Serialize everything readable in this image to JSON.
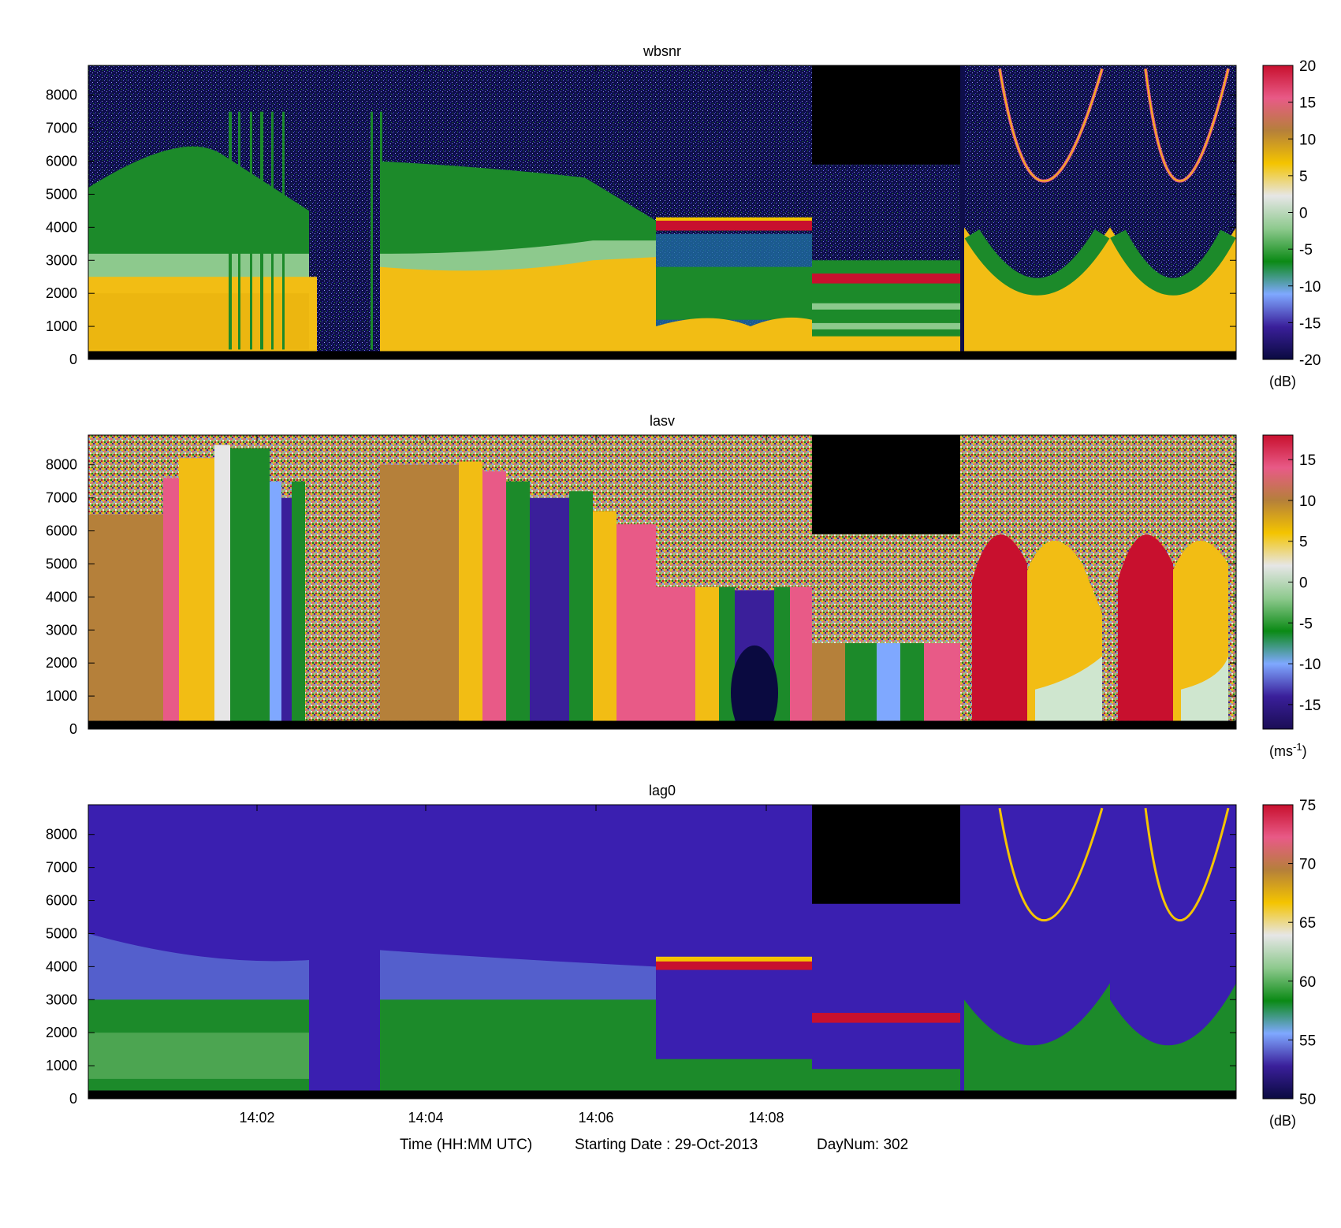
{
  "figure": {
    "footer": {
      "time_label": "Time (HH:MM UTC)",
      "date_label": "Starting Date : 29-Oct-2013",
      "daynum_label": "DayNum: 302"
    }
  },
  "chart_data": [
    {
      "type": "heatmap",
      "title": "wbsnr",
      "xlabel": "Time (HH:MM UTC)",
      "ylabel": "",
      "x_ticks": [
        "14:02",
        "14:04",
        "14:06",
        "14:08"
      ],
      "y_ticks": [
        0,
        1000,
        2000,
        3000,
        4000,
        5000,
        6000,
        7000,
        8000
      ],
      "ylim": [
        0,
        8900
      ],
      "colorbar": {
        "unit": "(dB)",
        "ticks": [
          "20",
          "15",
          "10",
          "5",
          "0",
          "-5",
          "-10",
          "-15",
          "-20"
        ],
        "range": [
          -20,
          20
        ],
        "colors": [
          "#0a0a40",
          "#3a1f9a",
          "#7fa8ff",
          "#0b8a15",
          "#8dc98d",
          "#e6e6e6",
          "#f4c400",
          "#b5803a",
          "#e85a87",
          "#c8102e"
        ]
      },
      "features": {
        "boundary_layer_value": 5,
        "upper_noise_value": -18,
        "cloud_layer_value": 18
      }
    },
    {
      "type": "heatmap",
      "title": "lasv",
      "xlabel": "Time (HH:MM UTC)",
      "ylabel": "",
      "x_ticks": [
        "14:02",
        "14:04",
        "14:06",
        "14:08"
      ],
      "y_ticks": [
        0,
        1000,
        2000,
        3000,
        4000,
        5000,
        6000,
        7000,
        8000
      ],
      "ylim": [
        0,
        8900
      ],
      "colorbar": {
        "unit": "(ms",
        "unit_sup": "-1",
        "unit_close": ")",
        "ticks": [
          "15",
          "10",
          "5",
          "0",
          "-5",
          "-10",
          "-15"
        ],
        "range": [
          -18,
          18
        ],
        "colors": [
          "#1a0d55",
          "#3a1f9a",
          "#7fa8ff",
          "#0b8a15",
          "#8dc98d",
          "#e6e6e6",
          "#f4c400",
          "#b5803a",
          "#e85a87",
          "#c8102e"
        ]
      }
    },
    {
      "type": "heatmap",
      "title": "lag0",
      "xlabel": "Time (HH:MM UTC)",
      "ylabel": "",
      "x_ticks": [
        "14:02",
        "14:04",
        "14:06",
        "14:08"
      ],
      "y_ticks": [
        0,
        1000,
        2000,
        3000,
        4000,
        5000,
        6000,
        7000,
        8000
      ],
      "ylim": [
        0,
        8900
      ],
      "colorbar": {
        "unit": "(dB)",
        "ticks": [
          "75",
          "70",
          "65",
          "60",
          "55",
          "50"
        ],
        "range": [
          50,
          75
        ],
        "colors": [
          "#0a0a40",
          "#3a1f9a",
          "#7fa8ff",
          "#0b8a15",
          "#8dc98d",
          "#e6e6e6",
          "#f4c400",
          "#b5803a",
          "#e85a87",
          "#c8102e"
        ]
      }
    }
  ]
}
